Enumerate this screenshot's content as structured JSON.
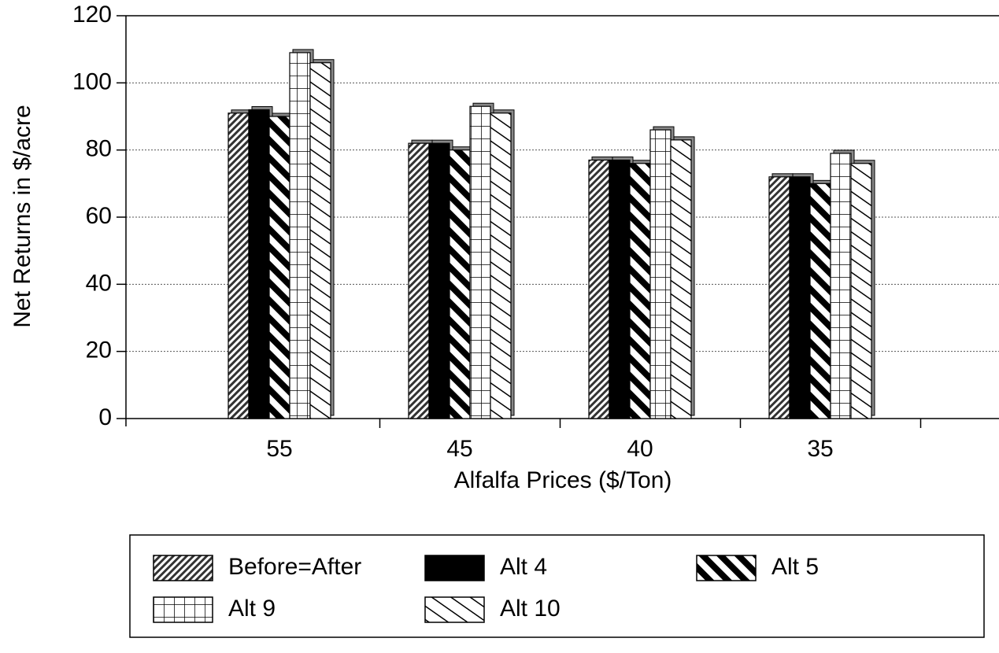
{
  "chart_data": {
    "type": "bar",
    "x_label": "Alfalfa Prices ($/Ton)",
    "y_label": "Net Returns in $/acre",
    "categories": [
      "55",
      "45",
      "40",
      "35"
    ],
    "series": [
      {
        "name": "Before=After",
        "color": "#000000",
        "pattern": "dense-hatch",
        "values": [
          91,
          82,
          77,
          72
        ]
      },
      {
        "name": "Alt 4",
        "color": "#000000",
        "pattern": "solid",
        "values": [
          92,
          82,
          77,
          72
        ]
      },
      {
        "name": "Alt 5",
        "color": "#000000",
        "pattern": "wide-stripes",
        "values": [
          90,
          80,
          76,
          70
        ]
      },
      {
        "name": "Alt 9",
        "color": "#000000",
        "pattern": "grid",
        "values": [
          109,
          93,
          86,
          79
        ]
      },
      {
        "name": "Alt 10",
        "color": "#000000",
        "pattern": "diagonal",
        "values": [
          106,
          91,
          83,
          76
        ]
      }
    ],
    "ylim": [
      0,
      120
    ],
    "yticks": [
      0,
      20,
      40,
      60,
      80,
      100,
      120
    ],
    "grid": true
  }
}
